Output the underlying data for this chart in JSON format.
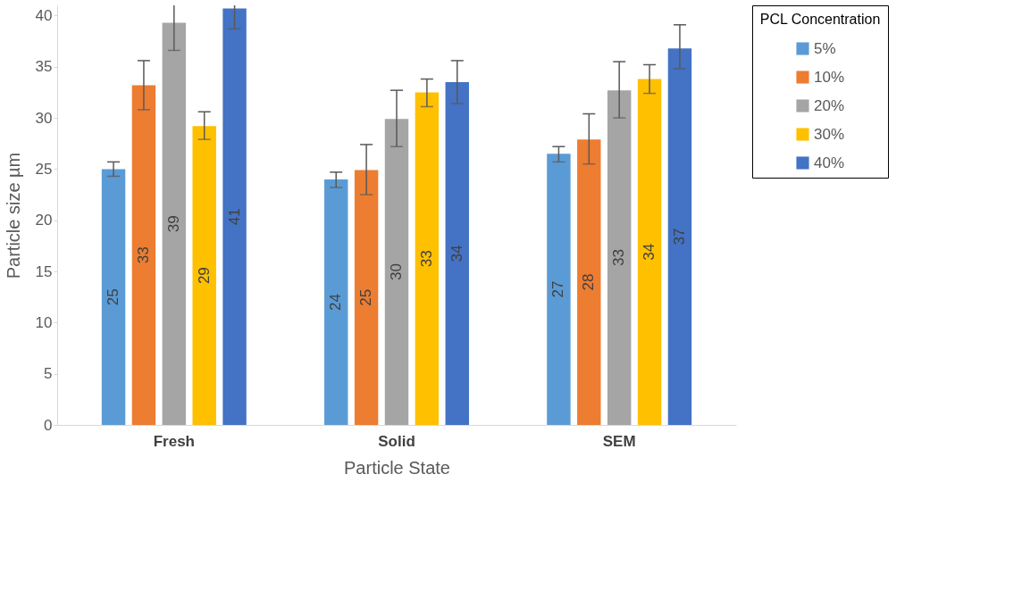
{
  "chart_data": {
    "type": "bar",
    "xlabel": "Particle State",
    "ylabel": "Particle size µm",
    "legend_title": "PCL Concentration",
    "categories": [
      "Fresh",
      "Solid",
      "SEM"
    ],
    "series": [
      {
        "name": "5%",
        "color": "#5b9bd5",
        "values": [
          25.0,
          24.0,
          26.5
        ],
        "errors": [
          [
            24.3,
            25.7
          ],
          [
            23.2,
            24.7
          ],
          [
            25.7,
            27.2
          ]
        ],
        "value_labels": [
          "25",
          "24",
          "27"
        ]
      },
      {
        "name": "10%",
        "color": "#ed7d31",
        "values": [
          33.2,
          24.9,
          27.9
        ],
        "errors": [
          [
            30.8,
            35.6
          ],
          [
            22.5,
            27.4
          ],
          [
            25.5,
            30.4
          ]
        ],
        "value_labels": [
          "33",
          "25",
          "28"
        ]
      },
      {
        "name": "20%",
        "color": "#a5a5a5",
        "values": [
          39.3,
          29.9,
          32.7
        ],
        "errors": [
          [
            36.6,
            41
          ],
          [
            27.2,
            32.7
          ],
          [
            30.0,
            35.5
          ]
        ],
        "value_labels": [
          "39",
          "30",
          "33"
        ]
      },
      {
        "name": "30%",
        "color": "#ffc000",
        "values": [
          29.2,
          32.5,
          33.8
        ],
        "errors": [
          [
            27.9,
            30.6
          ],
          [
            31.1,
            33.8
          ],
          [
            32.4,
            35.2
          ]
        ],
        "value_labels": [
          "29",
          "33",
          "34"
        ]
      },
      {
        "name": "40%",
        "color": "#4472c4",
        "values": [
          40.7,
          33.5,
          36.8
        ],
        "errors": [
          [
            38.7,
            41
          ],
          [
            31.4,
            35.6
          ],
          [
            34.8,
            39.1
          ]
        ],
        "value_labels": [
          "41",
          "34",
          "37"
        ]
      }
    ],
    "ylim": [
      0,
      41
    ],
    "yticks": [
      0,
      5,
      10,
      15,
      20,
      25,
      30,
      35,
      40
    ],
    "grid": false,
    "legend": "right"
  }
}
